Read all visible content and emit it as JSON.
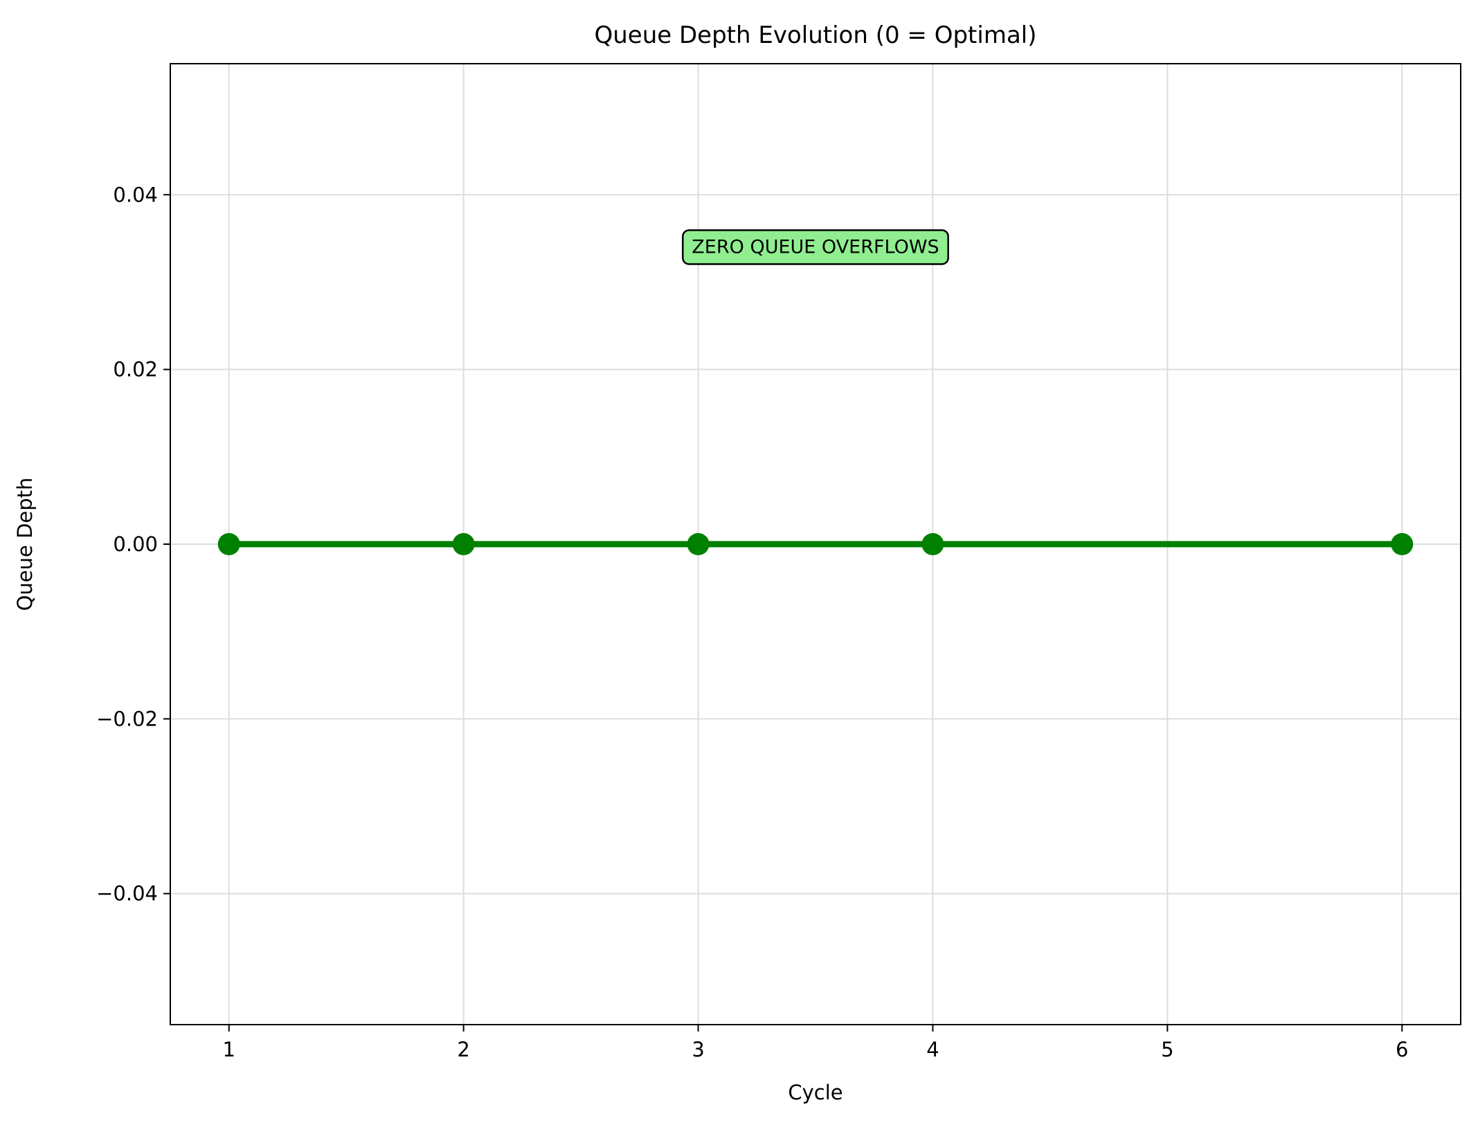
{
  "chart_data": {
    "type": "line",
    "title": "Queue Depth Evolution (0 = Optimal)",
    "xlabel": "Cycle",
    "ylabel": "Queue Depth",
    "xlim": [
      0.75,
      6.25
    ],
    "ylim": [
      -0.055,
      0.055
    ],
    "x_ticks": [
      1,
      2,
      3,
      4,
      5,
      6
    ],
    "x_tick_labels": [
      "1",
      "2",
      "3",
      "4",
      "5",
      "6"
    ],
    "y_ticks": [
      -0.04,
      -0.02,
      0.0,
      0.02,
      0.04
    ],
    "y_tick_labels": [
      "−0.04",
      "−0.02",
      "0.00",
      "0.02",
      "0.04"
    ],
    "grid": true,
    "line_color": "#008000",
    "series": [
      {
        "x": [
          1,
          2,
          3,
          4,
          6
        ],
        "values": [
          0,
          0,
          0,
          0,
          0
        ],
        "marker": "circle"
      }
    ],
    "annotation": {
      "text": "ZERO QUEUE OVERFLOWS",
      "x": 3.5,
      "y": 0.034,
      "background": "#90EE90"
    }
  }
}
